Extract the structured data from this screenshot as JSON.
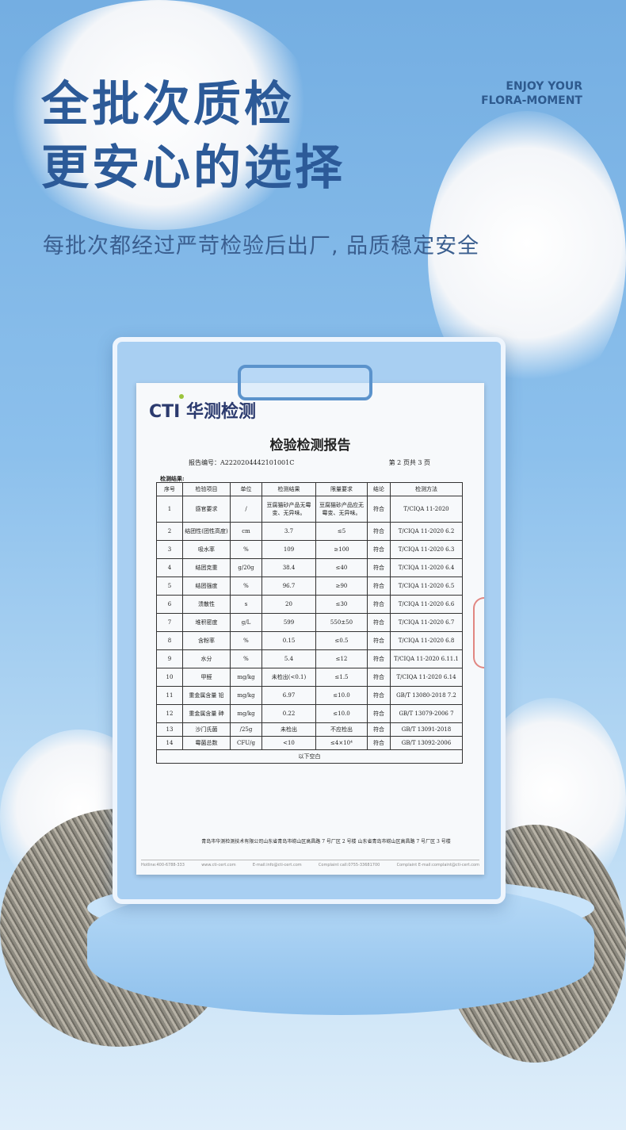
{
  "headline": {
    "line1": "全批次质检",
    "line2": "更安心的选择",
    "subtitle": "每批次都经过严苛检验后出厂, 品质稳定安全"
  },
  "brand": {
    "line1": "ENJOY YOUR",
    "line2": "FLORA-MOMENT"
  },
  "report": {
    "logo": "CTI 华测检测",
    "title": "检验检测报告",
    "report_no": "报告编号：A2220204442101001C",
    "page": "第 2 页共 3 页",
    "section": "检测结果:",
    "headers": [
      "序号",
      "检验项目",
      "单位",
      "检测结果",
      "限量要求",
      "结论",
      "检测方法"
    ],
    "rows": [
      [
        "1",
        "感官要求",
        "/",
        "豆腐猫砂产品无霉变、无异味。",
        "豆腐猫砂产品应无霉变、无异味。",
        "符合",
        "T/CIQA 11-2020"
      ],
      [
        "2",
        "结团性(团性高度)",
        "cm",
        "3.7",
        "≤5",
        "符合",
        "T/CIQA 11-2020 6.2"
      ],
      [
        "3",
        "吸水率",
        "%",
        "109",
        "≥100",
        "符合",
        "T/CIQA 11-2020 6.3"
      ],
      [
        "4",
        "结团克重",
        "g/20g",
        "38.4",
        "≤40",
        "符合",
        "T/CIQA 11-2020 6.4"
      ],
      [
        "5",
        "结团强度",
        "%",
        "96.7",
        "≥90",
        "符合",
        "T/CIQA 11-2020 6.5"
      ],
      [
        "6",
        "溃散性",
        "s",
        "20",
        "≤30",
        "符合",
        "T/CIQA 11-2020 6.6"
      ],
      [
        "7",
        "堆积密度",
        "g/L",
        "599",
        "550±50",
        "符合",
        "T/CIQA 11-2020 6.7"
      ],
      [
        "8",
        "含粉率",
        "%",
        "0.15",
        "≤0.5",
        "符合",
        "T/CIQA 11-2020 6.8"
      ],
      [
        "9",
        "水分",
        "%",
        "5.4",
        "≤12",
        "符合",
        "T/CIQA 11-2020 6.11.1"
      ],
      [
        "10",
        "甲醛",
        "mg/kg",
        "未检出(<0.1)",
        "≤1.5",
        "符合",
        "T/CIQA 11-2020 6.14"
      ],
      [
        "11",
        "重金属含量 铅",
        "mg/kg",
        "6.97",
        "≤10.0",
        "符合",
        "GB/T 13080-2018 7.2"
      ],
      [
        "12",
        "重金属含量 砷",
        "mg/kg",
        "0.22",
        "≤10.0",
        "符合",
        "GB/T 13079-2006 7"
      ],
      [
        "13",
        "沙门氏菌",
        "/25g",
        "未检出",
        "不应检出",
        "符合",
        "GB/T 13091-2018"
      ],
      [
        "14",
        "霉菌总数",
        "CFU/g",
        "<10",
        "≤4×10⁴",
        "符合",
        "GB/T 13092-2006"
      ]
    ],
    "blank_note": "以下空白",
    "address": "青岛市华测检测技术有限公司山东省青岛市崂山区高昌路 7 号厂区 2 号楼  山东省青岛市崂山区高昌路 7 号厂区 3 号楼",
    "footer": [
      "Hotline:400-6788-333",
      "www.cti-cert.com",
      "E-mail:info@cti-cert.com",
      "Complaint call:0755-33681700",
      "Complaint E-mail:complaint@cti-cert.com"
    ]
  }
}
